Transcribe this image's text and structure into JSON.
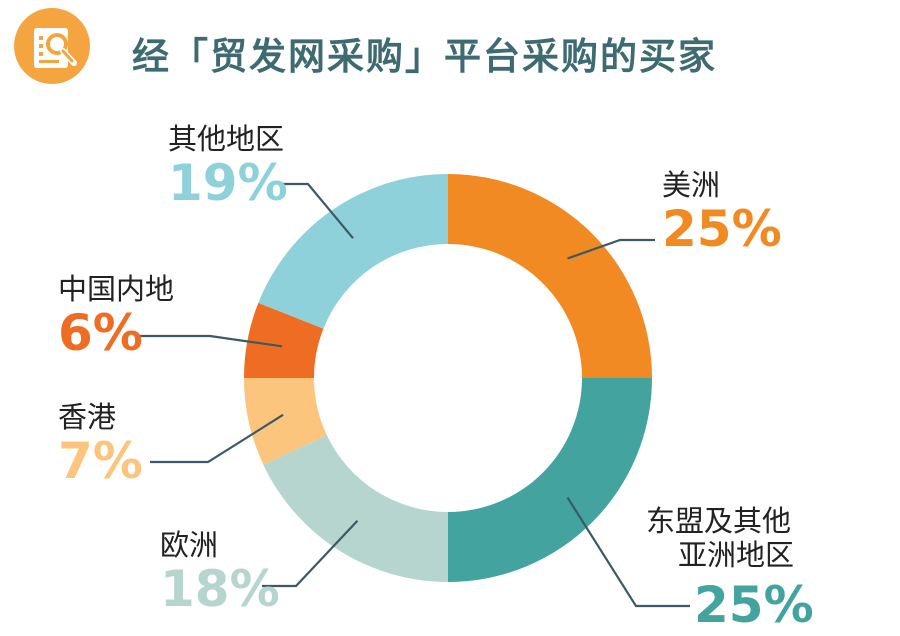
{
  "header": {
    "title": "经「贸发网采购」平台采购的买家",
    "icon": "magnifier-document-icon"
  },
  "chart_data": {
    "type": "pie",
    "donut": true,
    "title": "经「贸发网采购」平台采购的买家",
    "slices": [
      {
        "name": "美洲",
        "value": 25,
        "label": "25%",
        "color": "#f18a22"
      },
      {
        "name": "东盟及其他亚洲地区",
        "value": 25,
        "label": "25%",
        "color": "#42a39f"
      },
      {
        "name": "欧洲",
        "value": 18,
        "label": "18%",
        "color": "#b6d5cf"
      },
      {
        "name": "香港",
        "value": 7,
        "label": "7%",
        "color": "#fbc57e"
      },
      {
        "name": "中国内地",
        "value": 6,
        "label": "6%",
        "color": "#ef6d23"
      },
      {
        "name": "其他地区",
        "value": 19,
        "label": "19%",
        "color": "#8fd1da"
      }
    ]
  },
  "labels": {
    "americas": {
      "line1": "美洲",
      "line2": "",
      "pct": "25%"
    },
    "asean": {
      "line1": "东盟及其他",
      "line2": "亚洲地区",
      "pct": "25%"
    },
    "europe": {
      "line1": "欧洲",
      "line2": "",
      "pct": "18%"
    },
    "hongkong": {
      "line1": "香港",
      "line2": "",
      "pct": "7%"
    },
    "mainland": {
      "line1": "中国内地",
      "line2": "",
      "pct": "6%"
    },
    "others": {
      "line1": "其他地区",
      "line2": "",
      "pct": "19%"
    }
  }
}
